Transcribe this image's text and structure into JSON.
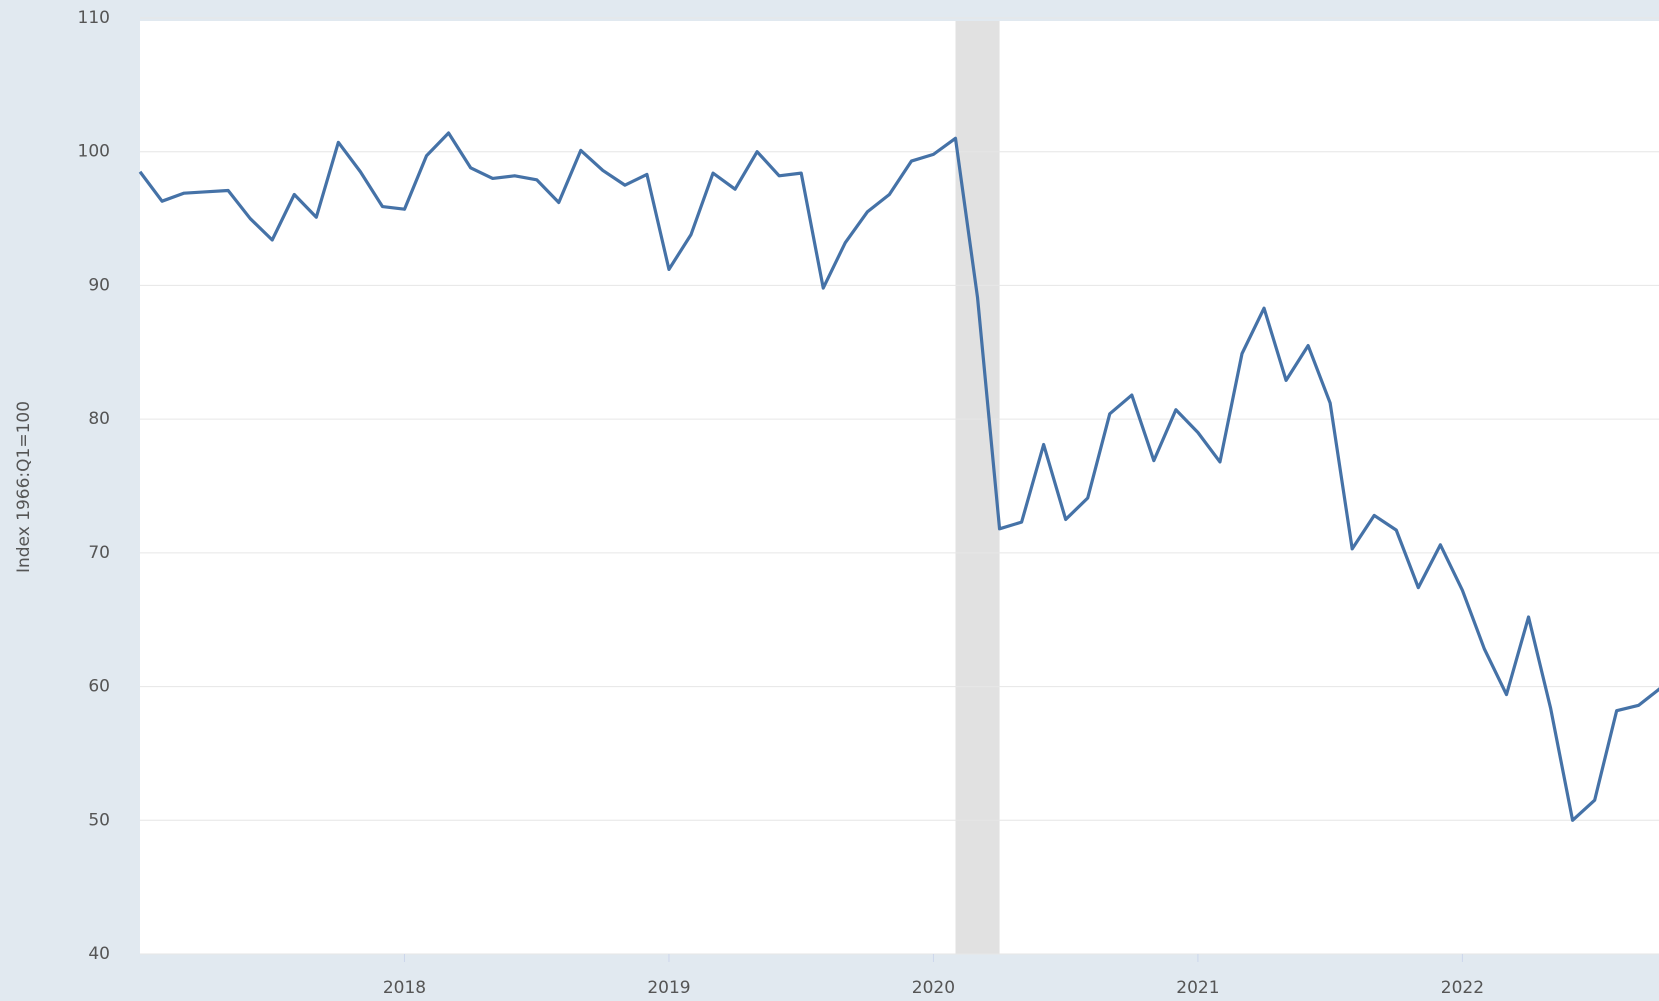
{
  "chart_data": {
    "type": "line",
    "y_label": "Index 1966:Q1=100",
    "x": [
      "2017-01",
      "2017-02",
      "2017-03",
      "2017-04",
      "2017-05",
      "2017-06",
      "2017-07",
      "2017-08",
      "2017-09",
      "2017-10",
      "2017-11",
      "2017-12",
      "2018-01",
      "2018-02",
      "2018-03",
      "2018-04",
      "2018-05",
      "2018-06",
      "2018-07",
      "2018-08",
      "2018-09",
      "2018-10",
      "2018-11",
      "2018-12",
      "2019-01",
      "2019-02",
      "2019-03",
      "2019-04",
      "2019-05",
      "2019-06",
      "2019-07",
      "2019-08",
      "2019-09",
      "2019-10",
      "2019-11",
      "2019-12",
      "2020-01",
      "2020-02",
      "2020-03",
      "2020-04",
      "2020-05",
      "2020-06",
      "2020-07",
      "2020-08",
      "2020-09",
      "2020-10",
      "2020-11",
      "2020-12",
      "2021-01",
      "2021-02",
      "2021-03",
      "2021-04",
      "2021-05",
      "2021-06",
      "2021-07",
      "2021-08",
      "2021-09",
      "2021-10",
      "2021-11",
      "2021-12",
      "2022-01",
      "2022-02",
      "2022-03",
      "2022-04",
      "2022-05",
      "2022-06",
      "2022-07",
      "2022-08",
      "2022-09",
      "2022-10"
    ],
    "series": [
      {
        "color": "#4572a7",
        "values": [
          98.5,
          96.3,
          96.9,
          97.0,
          97.1,
          95.0,
          93.4,
          96.8,
          95.1,
          100.7,
          98.5,
          95.9,
          95.7,
          99.7,
          101.4,
          98.8,
          98.0,
          98.2,
          97.9,
          96.2,
          100.1,
          98.6,
          97.5,
          98.3,
          91.2,
          93.8,
          98.4,
          97.2,
          100.0,
          98.2,
          98.4,
          89.8,
          93.2,
          95.5,
          96.8,
          99.3,
          99.8,
          101.0,
          89.1,
          71.8,
          72.3,
          78.1,
          72.5,
          74.1,
          80.4,
          81.8,
          76.9,
          80.7,
          79.0,
          76.8,
          84.9,
          88.3,
          82.9,
          85.5,
          81.2,
          70.3,
          72.8,
          71.7,
          67.4,
          70.6,
          67.2,
          62.8,
          59.4,
          65.2,
          58.4,
          50.0,
          51.5,
          58.2,
          58.6,
          59.9
        ]
      }
    ],
    "recession": {
      "start": "2020-02",
      "end": "2020-04",
      "color": "#e1e1e1"
    },
    "xticks": [
      {
        "value": "2018-01",
        "label": "2018"
      },
      {
        "value": "2019-01",
        "label": "2019"
      },
      {
        "value": "2020-01",
        "label": "2020"
      },
      {
        "value": "2021-01",
        "label": "2021"
      },
      {
        "value": "2022-01",
        "label": "2022"
      }
    ],
    "ylim": [
      40,
      110
    ],
    "yticks": [
      40,
      50,
      60,
      70,
      80,
      90,
      100,
      110
    ],
    "grid": true
  }
}
